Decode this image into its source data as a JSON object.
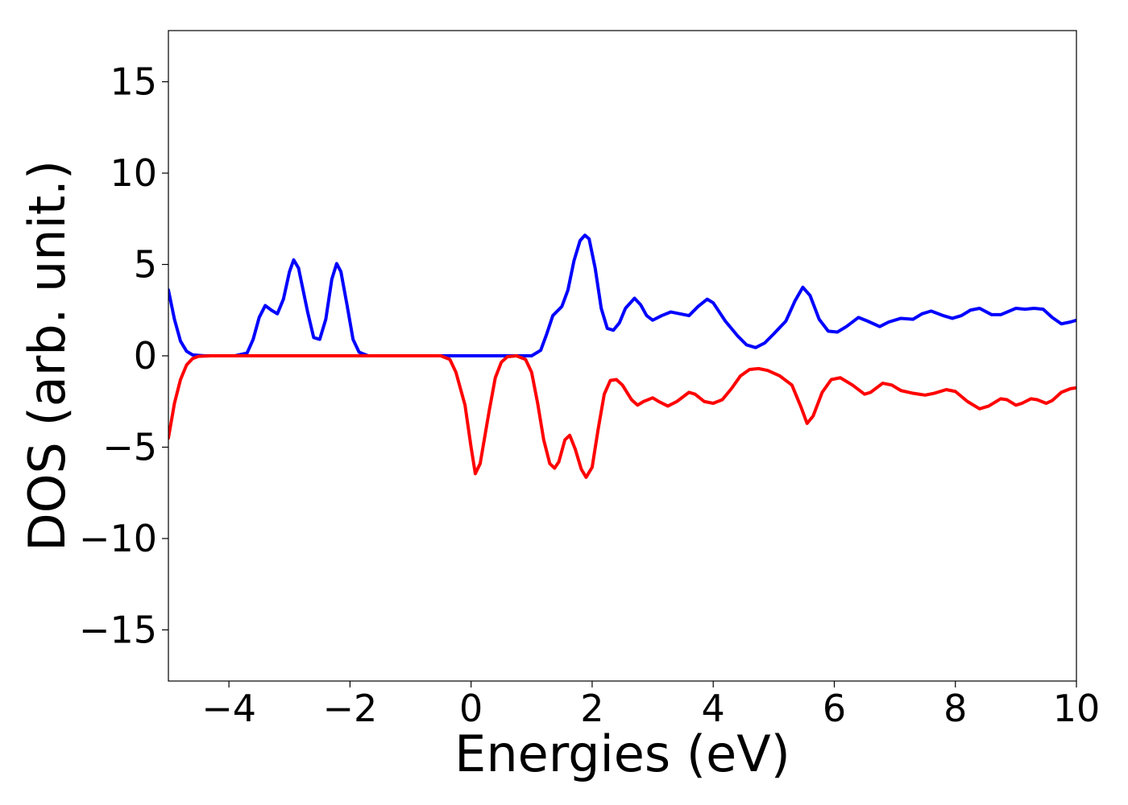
{
  "chart_data": {
    "type": "line",
    "title": "",
    "xlabel": "Energies (eV)",
    "ylabel": "DOS (arb. unit.)",
    "xlim": [
      -5,
      10
    ],
    "ylim": [
      -17.8,
      17.8
    ],
    "xticks": [
      -4,
      -2,
      0,
      2,
      4,
      6,
      8,
      10
    ],
    "yticks": [
      -15,
      -10,
      -5,
      0,
      5,
      10,
      15
    ],
    "grid": false,
    "legend": "none",
    "series": [
      {
        "color": "#0000ff",
        "points": [
          [
            -5.0,
            3.6
          ],
          [
            -4.9,
            2.0
          ],
          [
            -4.8,
            0.8
          ],
          [
            -4.7,
            0.25
          ],
          [
            -4.6,
            0.05
          ],
          [
            -4.4,
            0.0
          ],
          [
            -3.9,
            0.0
          ],
          [
            -3.7,
            0.15
          ],
          [
            -3.6,
            0.9
          ],
          [
            -3.5,
            2.1
          ],
          [
            -3.4,
            2.75
          ],
          [
            -3.3,
            2.5
          ],
          [
            -3.2,
            2.3
          ],
          [
            -3.1,
            3.1
          ],
          [
            -3.0,
            4.6
          ],
          [
            -2.93,
            5.25
          ],
          [
            -2.85,
            4.8
          ],
          [
            -2.7,
            2.4
          ],
          [
            -2.6,
            1.0
          ],
          [
            -2.5,
            0.9
          ],
          [
            -2.4,
            2.0
          ],
          [
            -2.3,
            4.2
          ],
          [
            -2.22,
            5.05
          ],
          [
            -2.15,
            4.6
          ],
          [
            -2.05,
            2.8
          ],
          [
            -1.95,
            0.9
          ],
          [
            -1.85,
            0.2
          ],
          [
            -1.7,
            0.0
          ],
          [
            1.0,
            0.0
          ],
          [
            1.15,
            0.3
          ],
          [
            1.25,
            1.2
          ],
          [
            1.35,
            2.2
          ],
          [
            1.5,
            2.7
          ],
          [
            1.6,
            3.6
          ],
          [
            1.7,
            5.2
          ],
          [
            1.8,
            6.3
          ],
          [
            1.88,
            6.6
          ],
          [
            1.95,
            6.4
          ],
          [
            2.05,
            4.8
          ],
          [
            2.15,
            2.6
          ],
          [
            2.25,
            1.5
          ],
          [
            2.35,
            1.4
          ],
          [
            2.45,
            1.8
          ],
          [
            2.55,
            2.6
          ],
          [
            2.7,
            3.15
          ],
          [
            2.8,
            2.8
          ],
          [
            2.9,
            2.2
          ],
          [
            3.0,
            1.95
          ],
          [
            3.15,
            2.2
          ],
          [
            3.3,
            2.4
          ],
          [
            3.45,
            2.3
          ],
          [
            3.6,
            2.2
          ],
          [
            3.75,
            2.7
          ],
          [
            3.9,
            3.1
          ],
          [
            4.0,
            2.9
          ],
          [
            4.2,
            1.9
          ],
          [
            4.4,
            1.1
          ],
          [
            4.55,
            0.6
          ],
          [
            4.7,
            0.45
          ],
          [
            4.85,
            0.7
          ],
          [
            5.0,
            1.2
          ],
          [
            5.2,
            1.9
          ],
          [
            5.35,
            3.0
          ],
          [
            5.48,
            3.75
          ],
          [
            5.6,
            3.3
          ],
          [
            5.75,
            2.0
          ],
          [
            5.9,
            1.35
          ],
          [
            6.05,
            1.3
          ],
          [
            6.2,
            1.6
          ],
          [
            6.4,
            2.1
          ],
          [
            6.55,
            1.9
          ],
          [
            6.75,
            1.6
          ],
          [
            6.9,
            1.85
          ],
          [
            7.1,
            2.05
          ],
          [
            7.3,
            2.0
          ],
          [
            7.45,
            2.3
          ],
          [
            7.6,
            2.45
          ],
          [
            7.8,
            2.2
          ],
          [
            7.95,
            2.05
          ],
          [
            8.1,
            2.2
          ],
          [
            8.25,
            2.5
          ],
          [
            8.4,
            2.6
          ],
          [
            8.6,
            2.25
          ],
          [
            8.75,
            2.25
          ],
          [
            9.0,
            2.6
          ],
          [
            9.15,
            2.55
          ],
          [
            9.3,
            2.6
          ],
          [
            9.45,
            2.55
          ],
          [
            9.6,
            2.1
          ],
          [
            9.75,
            1.75
          ],
          [
            9.9,
            1.85
          ],
          [
            10.0,
            1.95
          ]
        ]
      },
      {
        "color": "#ff0000",
        "points": [
          [
            -5.0,
            -4.5
          ],
          [
            -4.9,
            -2.6
          ],
          [
            -4.8,
            -1.3
          ],
          [
            -4.7,
            -0.5
          ],
          [
            -4.6,
            -0.15
          ],
          [
            -4.5,
            -0.03
          ],
          [
            -4.3,
            0.0
          ],
          [
            -0.5,
            0.0
          ],
          [
            -0.35,
            -0.2
          ],
          [
            -0.25,
            -0.9
          ],
          [
            -0.1,
            -2.7
          ],
          [
            0.0,
            -5.0
          ],
          [
            0.07,
            -6.45
          ],
          [
            0.15,
            -5.9
          ],
          [
            0.3,
            -3.0
          ],
          [
            0.4,
            -1.2
          ],
          [
            0.5,
            -0.35
          ],
          [
            0.6,
            -0.05
          ],
          [
            0.75,
            0.0
          ],
          [
            0.9,
            -0.2
          ],
          [
            1.0,
            -0.9
          ],
          [
            1.1,
            -2.6
          ],
          [
            1.2,
            -4.6
          ],
          [
            1.3,
            -5.9
          ],
          [
            1.38,
            -6.15
          ],
          [
            1.45,
            -5.8
          ],
          [
            1.55,
            -4.6
          ],
          [
            1.63,
            -4.35
          ],
          [
            1.72,
            -5.1
          ],
          [
            1.82,
            -6.2
          ],
          [
            1.9,
            -6.65
          ],
          [
            2.0,
            -6.1
          ],
          [
            2.1,
            -4.0
          ],
          [
            2.2,
            -2.1
          ],
          [
            2.3,
            -1.35
          ],
          [
            2.4,
            -1.3
          ],
          [
            2.5,
            -1.6
          ],
          [
            2.65,
            -2.4
          ],
          [
            2.75,
            -2.7
          ],
          [
            2.85,
            -2.5
          ],
          [
            3.0,
            -2.3
          ],
          [
            3.1,
            -2.5
          ],
          [
            3.25,
            -2.75
          ],
          [
            3.4,
            -2.5
          ],
          [
            3.6,
            -2.0
          ],
          [
            3.7,
            -2.1
          ],
          [
            3.85,
            -2.5
          ],
          [
            4.0,
            -2.6
          ],
          [
            4.15,
            -2.4
          ],
          [
            4.3,
            -1.8
          ],
          [
            4.45,
            -1.1
          ],
          [
            4.6,
            -0.75
          ],
          [
            4.75,
            -0.7
          ],
          [
            4.9,
            -0.8
          ],
          [
            5.1,
            -1.1
          ],
          [
            5.3,
            -1.6
          ],
          [
            5.45,
            -2.8
          ],
          [
            5.55,
            -3.7
          ],
          [
            5.65,
            -3.3
          ],
          [
            5.8,
            -2.0
          ],
          [
            5.95,
            -1.3
          ],
          [
            6.1,
            -1.2
          ],
          [
            6.3,
            -1.6
          ],
          [
            6.5,
            -2.1
          ],
          [
            6.6,
            -2.0
          ],
          [
            6.8,
            -1.5
          ],
          [
            6.95,
            -1.6
          ],
          [
            7.1,
            -1.9
          ],
          [
            7.3,
            -2.05
          ],
          [
            7.5,
            -2.15
          ],
          [
            7.65,
            -2.05
          ],
          [
            7.85,
            -1.85
          ],
          [
            8.0,
            -1.95
          ],
          [
            8.2,
            -2.5
          ],
          [
            8.4,
            -2.9
          ],
          [
            8.55,
            -2.75
          ],
          [
            8.75,
            -2.35
          ],
          [
            8.85,
            -2.4
          ],
          [
            9.0,
            -2.7
          ],
          [
            9.1,
            -2.6
          ],
          [
            9.25,
            -2.35
          ],
          [
            9.35,
            -2.4
          ],
          [
            9.5,
            -2.6
          ],
          [
            9.6,
            -2.45
          ],
          [
            9.75,
            -2.0
          ],
          [
            9.9,
            -1.8
          ],
          [
            10.0,
            -1.75
          ]
        ]
      }
    ]
  }
}
